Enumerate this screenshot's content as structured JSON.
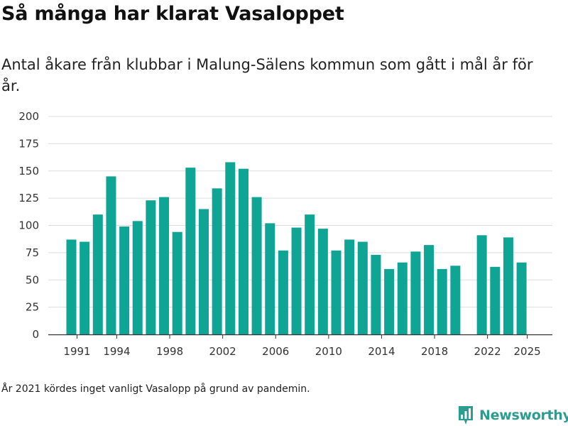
{
  "header": {
    "title": "Så många har klarat Vasaloppet",
    "subtitle": "Antal åkare från klubbar i Malung-Sälens kommun som gått i mål år för år."
  },
  "footnote": "År 2021 kördes inget vanligt Vasalopp på grund av pandemin.",
  "brand": {
    "name": "Newsworthy",
    "color": "#2a9d8f"
  },
  "colors": {
    "bar": "#0ea594",
    "grid": "#dddddd",
    "axis": "#333333"
  },
  "chart_data": {
    "type": "bar",
    "title": "Så många har klarat Vasaloppet",
    "xlabel": "",
    "ylabel": "",
    "ylim": [
      0,
      200
    ],
    "yticks": [
      0,
      25,
      50,
      75,
      100,
      125,
      150,
      175,
      200
    ],
    "xticks": [
      1991,
      1994,
      1998,
      2002,
      2006,
      2010,
      2014,
      2018,
      2022,
      2025
    ],
    "grid": true,
    "categories": [
      1991,
      1992,
      1993,
      1994,
      1995,
      1996,
      1997,
      1998,
      1999,
      2000,
      2001,
      2002,
      2003,
      2004,
      2005,
      2006,
      2007,
      2008,
      2009,
      2010,
      2011,
      2012,
      2013,
      2014,
      2015,
      2016,
      2017,
      2018,
      2019,
      2020,
      2021,
      2022,
      2023,
      2024,
      2025
    ],
    "values": [
      87,
      85,
      110,
      145,
      99,
      104,
      123,
      126,
      94,
      153,
      115,
      134,
      158,
      152,
      126,
      102,
      77,
      98,
      110,
      97,
      77,
      87,
      85,
      73,
      60,
      66,
      76,
      82,
      60,
      63,
      null,
      91,
      62,
      89,
      66
    ]
  }
}
